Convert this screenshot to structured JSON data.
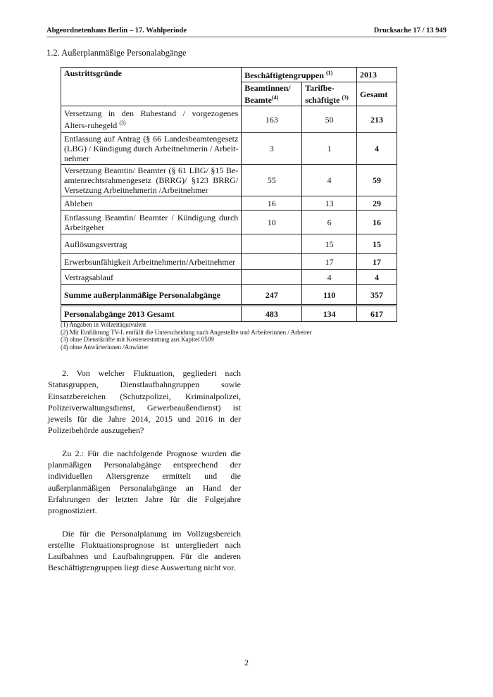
{
  "header": {
    "left": "Abgeordnetenhaus Berlin  – 17. Wahlperiode",
    "right": "Drucksache 17 / 13 949"
  },
  "section_title": "1.2.  Außerplanmäßige Personalabgänge",
  "table": {
    "col_reason": "Austrittsgründe",
    "col_groups": "Beschäftigtengruppen",
    "col_groups_note": "(1)",
    "col_year": "2013",
    "col_beamte": "Beamtinnen/ Beamte",
    "col_beamte_note": "(4)",
    "col_tarif": "Tarifbe-schäftigte",
    "col_tarif_note": "(3)",
    "col_total": "Gesamt",
    "rows": [
      {
        "reason": "Versetzung in den Ruhestand / vorgezogenes Alters-ruhegeld",
        "note": "(3)",
        "beamte": "163",
        "tarif": "50",
        "total": "213"
      },
      {
        "reason": "Entlassung auf Antrag (§ 66 Landesbeamtengesetz (LBG) / Kündigung durch Arbeitnehmerin / Arbeit-nehmer",
        "note": "",
        "beamte": "3",
        "tarif": "1",
        "total": "4"
      },
      {
        "reason": "Versetzung Beamtin/ Beamter (§ 61 LBG/ §15 Be-amtenrechtsrahmengesetz (BRRG)/ §123 BRRG/ Versetzung Arbeitnehmerin /Arbeitnehmer",
        "note": "",
        "beamte": "55",
        "tarif": "4",
        "total": "59"
      },
      {
        "reason": "Ableben",
        "note": "",
        "beamte": "16",
        "tarif": "13",
        "total": "29"
      },
      {
        "reason": "Entlassung Beamtin/ Beamter / Kündigung durch Arbeitgeber",
        "note": "",
        "beamte": "10",
        "tarif": "6",
        "total": "16"
      },
      {
        "reason": "Auflösungsvertrag",
        "note": "",
        "beamte": "",
        "tarif": "15",
        "total": "15"
      },
      {
        "reason": "Erwerbsunfähigkeit Arbeitnehmerin/Arbeitnehmer",
        "note": "",
        "beamte": "",
        "tarif": "17",
        "total": "17"
      },
      {
        "reason": "Vertragsablauf",
        "note": "",
        "beamte": "",
        "tarif": "4",
        "total": "4"
      }
    ],
    "sum": {
      "reason": "Summe außerplanmäßige Personalabgänge",
      "beamte": "247",
      "tarif": "110",
      "total": "357"
    },
    "grand": {
      "reason": "Personalabgänge 2013 Gesamt",
      "beamte": "483",
      "tarif": "134",
      "total": "617"
    }
  },
  "notes": [
    "(1) Angaben in Vollzeitäquivalent",
    "(2) Mit Einführung TV-L entfällt die Unterscheidung nach Angestellte und Arbeiterinnen / Arbeiter",
    "(3) ohne Dienstkräfte mit Kostenerstattung aus Kapitel 0509",
    "(4) ohne Anwärterinnen /Anwärter"
  ],
  "paragraphs": [
    "2. Von welcher Fluktuation, gegliedert nach Statusgruppen, Dienstlaufbahngruppen sowie Einsatzbereichen (Schutzpolizei, Kriminalpolizei, Polizeiverwaltungsdienst, Gewerbeaußendienst) ist jeweils für die Jahre 2014, 2015 und 2016 in der Polizeibehörde auszugehen?",
    "Zu 2.: Für die nachfolgende Prognose wurden die planmäßigen Personalabgänge entsprechend der individuellen Altersgrenze ermittelt und die außerplanmäßigen Personalabgänge an Hand der Erfahrungen der letzten Jahre für die Folgejahre prognostiziert.",
    "Die für die Personalplanung im Vollzugsbereich erstellte Fluktuationsprognose ist untergliedert nach Laufbahnen und Laufbahngruppen. Für die anderen Beschäftigtengruppen liegt diese Auswertung nicht vor."
  ],
  "page_number": "2"
}
